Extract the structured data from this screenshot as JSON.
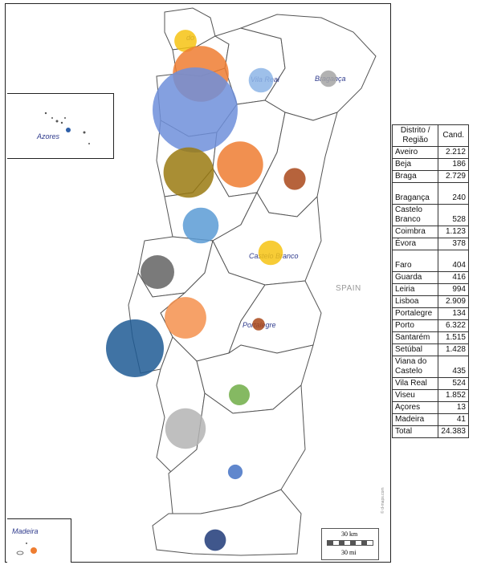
{
  "map": {
    "labels": {
      "spain": "SPAIN",
      "azores": "Azores",
      "madeira": "Madeira",
      "castelo_branco": "Castelo Branco",
      "portalegre": "Portalegre",
      "braganca": "Bragança",
      "viana": "do",
      "vila_real": "Vila Real"
    },
    "scale": {
      "km": "30 km",
      "mi": "30 mi"
    },
    "copyright": "© d-maps.com",
    "bubbles": [
      {
        "district": "Viana do Castelo",
        "value": 435,
        "color": "#f6c313"
      },
      {
        "district": "Braga",
        "value": 2729,
        "color": "#ee7d31"
      },
      {
        "district": "Porto",
        "value": 6322,
        "color": "#6f8fdb"
      },
      {
        "district": "Vila Real",
        "value": 524,
        "color": "#8db5e6"
      },
      {
        "district": "Bragança",
        "value": 240,
        "color": "#a4a4a4"
      },
      {
        "district": "Aveiro",
        "value": 2212,
        "color": "#9a7a10"
      },
      {
        "district": "Viseu",
        "value": 1852,
        "color": "#ee7d31"
      },
      {
        "district": "Guarda",
        "value": 416,
        "color": "#a9481a"
      },
      {
        "district": "Coimbra",
        "value": 1123,
        "color": "#5b9bd5"
      },
      {
        "district": "Castelo Branco",
        "value": 528,
        "color": "#f6c313"
      },
      {
        "district": "Leiria",
        "value": 994,
        "color": "#636363"
      },
      {
        "district": "Santarém",
        "value": 1515,
        "color": "#f4914d"
      },
      {
        "district": "Portalegre",
        "value": 134,
        "color": "#a9481a"
      },
      {
        "district": "Lisboa",
        "value": 2909,
        "color": "#1f5b94"
      },
      {
        "district": "Évora",
        "value": 378,
        "color": "#70ad47"
      },
      {
        "district": "Setúbal",
        "value": 1428,
        "color": "#b4b4b4"
      },
      {
        "district": "Beja",
        "value": 186,
        "color": "#4472c4"
      },
      {
        "district": "Faro",
        "value": 404,
        "color": "#1f3a78"
      },
      {
        "district": "Açores",
        "value": 13,
        "color": "#2e5fa8"
      },
      {
        "district": "Madeira",
        "value": 41,
        "color": "#ee7d31"
      }
    ]
  },
  "table": {
    "header": {
      "col1": "Distrito / Região",
      "col2": "Cand."
    },
    "rows": [
      {
        "name": "Aveiro",
        "value": "2.212"
      },
      {
        "name": "Beja",
        "value": "186"
      },
      {
        "name": "Braga",
        "value": "2.729"
      },
      {
        "name": "Bragança",
        "value": "240"
      },
      {
        "name": "Castelo Branco",
        "value": "528"
      },
      {
        "name": "Coimbra",
        "value": "1.123"
      },
      {
        "name": "Évora",
        "value": "378"
      },
      {
        "name": "Faro",
        "value": "404"
      },
      {
        "name": "Guarda",
        "value": "416"
      },
      {
        "name": "Leiria",
        "value": "994"
      },
      {
        "name": "Lisboa",
        "value": "2.909"
      },
      {
        "name": "Portalegre",
        "value": "134"
      },
      {
        "name": "Porto",
        "value": "6.322"
      },
      {
        "name": "Santarém",
        "value": "1.515"
      },
      {
        "name": "Setúbal",
        "value": "1.428"
      },
      {
        "name": "Viana do Castelo",
        "value": "435"
      },
      {
        "name": "Vila Real",
        "value": "524"
      },
      {
        "name": "Viseu",
        "value": "1.852"
      },
      {
        "name": "Açores",
        "value": "13"
      },
      {
        "name": "Madeira",
        "value": "41"
      }
    ],
    "total": {
      "name": "Total",
      "value": "24.383"
    }
  }
}
